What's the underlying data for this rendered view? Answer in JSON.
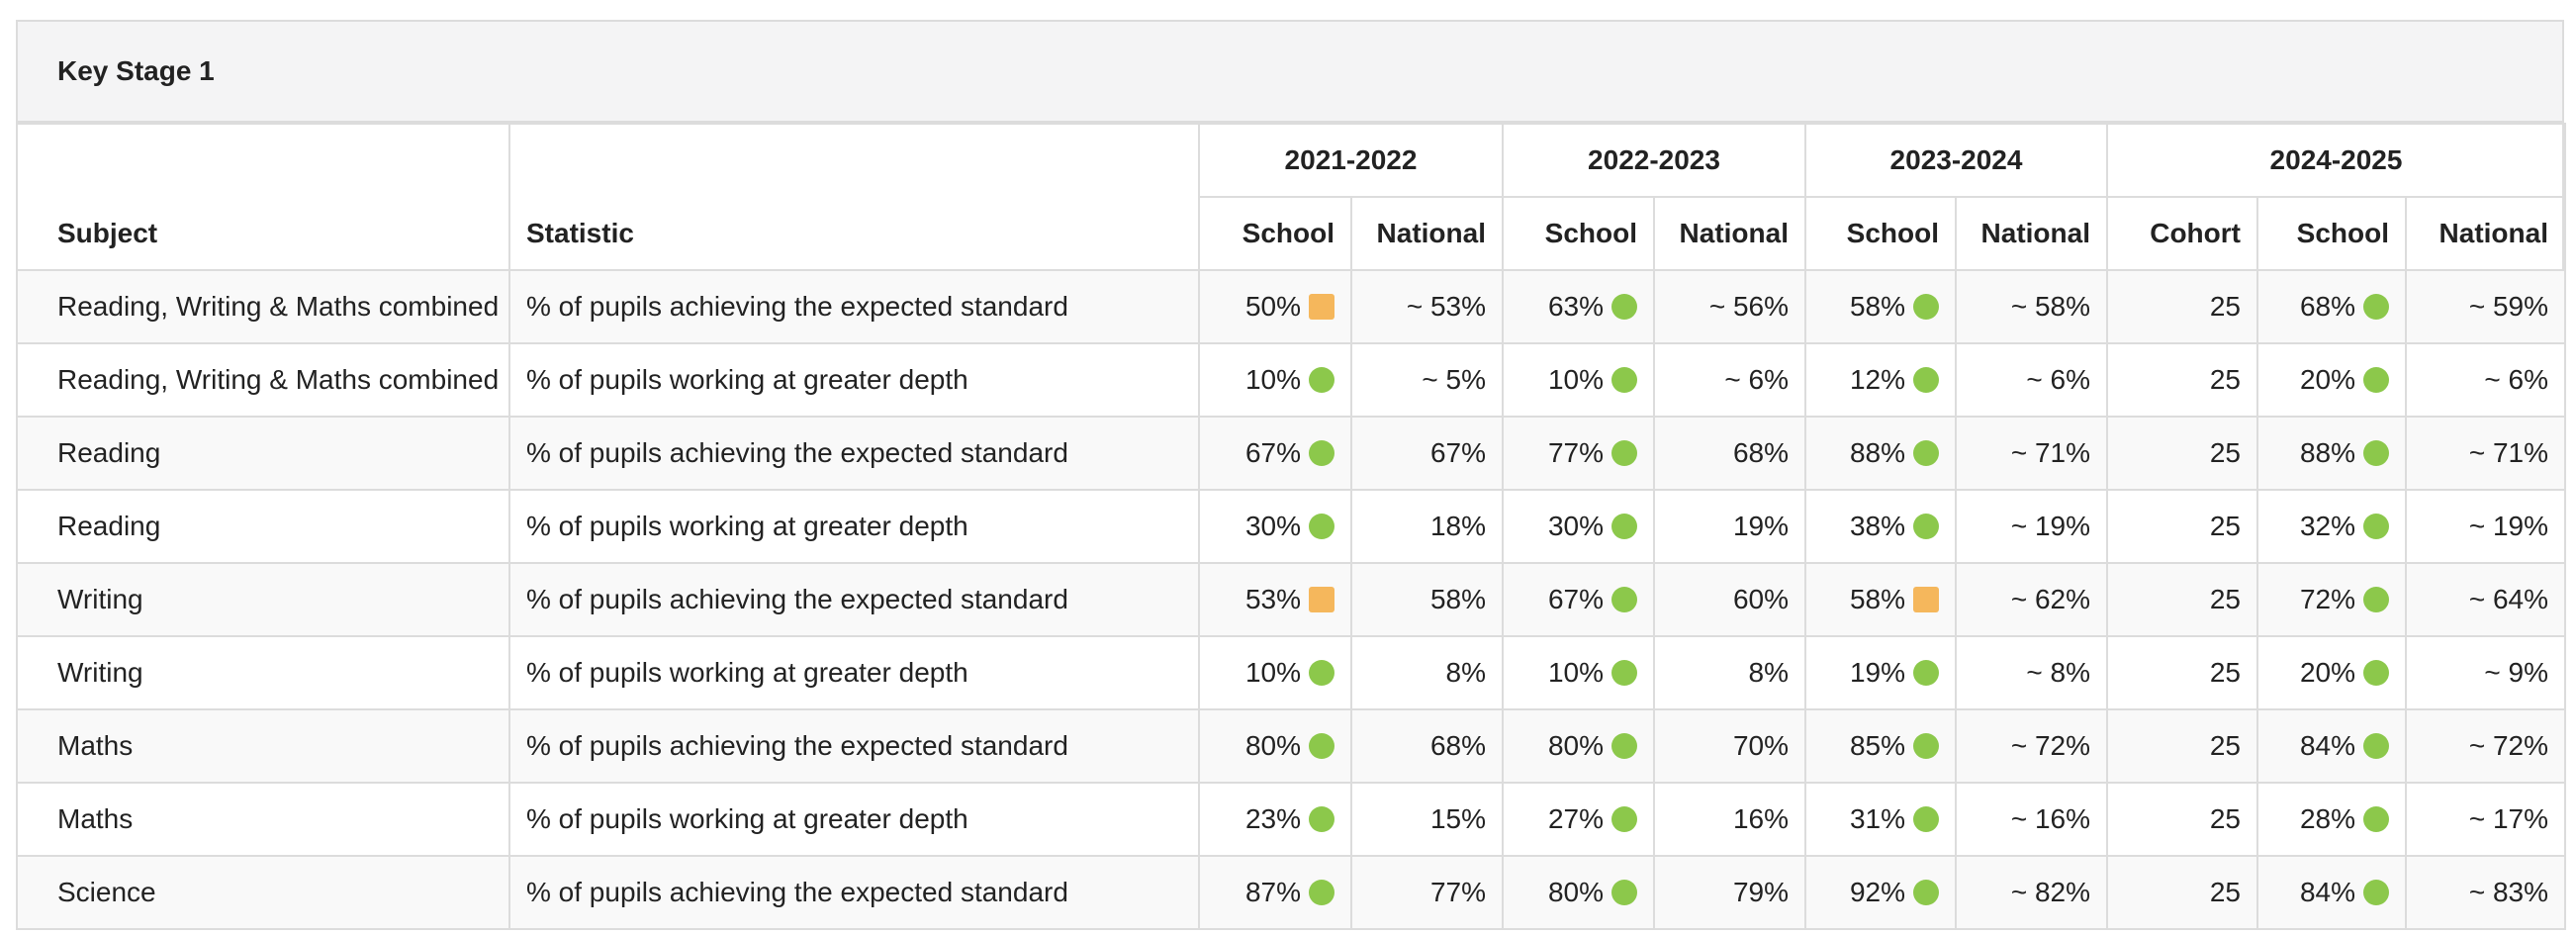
{
  "panel": {
    "title": "Key Stage 1"
  },
  "header": {
    "subject": "Subject",
    "statistic": "Statistic",
    "years": [
      "2021-2022",
      "2022-2023",
      "2023-2024",
      "2024-2025"
    ],
    "school": "School",
    "national": "National",
    "cohort": "Cohort"
  },
  "indicator_colors": {
    "green": "#8cc84b",
    "amber": "#f5b75c"
  },
  "rows": [
    {
      "subject": "Reading, Writing & Maths combined",
      "statistic": "% of pupils achieving the expected standard",
      "y1_school": "50%",
      "y1_ind": "amber",
      "y1_national": "~ 53%",
      "y2_school": "63%",
      "y2_ind": "green",
      "y2_national": "~ 56%",
      "y3_school": "58%",
      "y3_ind": "green",
      "y3_national": "~ 58%",
      "y4_cohort": "25",
      "y4_school": "68%",
      "y4_ind": "green",
      "y4_national": "~ 59%"
    },
    {
      "subject": "Reading, Writing & Maths combined",
      "statistic": "% of pupils working at greater depth",
      "y1_school": "10%",
      "y1_ind": "green",
      "y1_national": "~ 5%",
      "y2_school": "10%",
      "y2_ind": "green",
      "y2_national": "~ 6%",
      "y3_school": "12%",
      "y3_ind": "green",
      "y3_national": "~ 6%",
      "y4_cohort": "25",
      "y4_school": "20%",
      "y4_ind": "green",
      "y4_national": "~ 6%"
    },
    {
      "subject": "Reading",
      "statistic": "% of pupils achieving the expected standard",
      "y1_school": "67%",
      "y1_ind": "green",
      "y1_national": "67%",
      "y2_school": "77%",
      "y2_ind": "green",
      "y2_national": "68%",
      "y3_school": "88%",
      "y3_ind": "green",
      "y3_national": "~ 71%",
      "y4_cohort": "25",
      "y4_school": "88%",
      "y4_ind": "green",
      "y4_national": "~ 71%"
    },
    {
      "subject": "Reading",
      "statistic": "% of pupils working at greater depth",
      "y1_school": "30%",
      "y1_ind": "green",
      "y1_national": "18%",
      "y2_school": "30%",
      "y2_ind": "green",
      "y2_national": "19%",
      "y3_school": "38%",
      "y3_ind": "green",
      "y3_national": "~ 19%",
      "y4_cohort": "25",
      "y4_school": "32%",
      "y4_ind": "green",
      "y4_national": "~ 19%"
    },
    {
      "subject": "Writing",
      "statistic": "% of pupils achieving the expected standard",
      "y1_school": "53%",
      "y1_ind": "amber",
      "y1_national": "58%",
      "y2_school": "67%",
      "y2_ind": "green",
      "y2_national": "60%",
      "y3_school": "58%",
      "y3_ind": "amber",
      "y3_national": "~ 62%",
      "y4_cohort": "25",
      "y4_school": "72%",
      "y4_ind": "green",
      "y4_national": "~ 64%"
    },
    {
      "subject": "Writing",
      "statistic": "% of pupils working at greater depth",
      "y1_school": "10%",
      "y1_ind": "green",
      "y1_national": "8%",
      "y2_school": "10%",
      "y2_ind": "green",
      "y2_national": "8%",
      "y3_school": "19%",
      "y3_ind": "green",
      "y3_national": "~ 8%",
      "y4_cohort": "25",
      "y4_school": "20%",
      "y4_ind": "green",
      "y4_national": "~ 9%"
    },
    {
      "subject": "Maths",
      "statistic": "% of pupils achieving the expected standard",
      "y1_school": "80%",
      "y1_ind": "green",
      "y1_national": "68%",
      "y2_school": "80%",
      "y2_ind": "green",
      "y2_national": "70%",
      "y3_school": "85%",
      "y3_ind": "green",
      "y3_national": "~ 72%",
      "y4_cohort": "25",
      "y4_school": "84%",
      "y4_ind": "green",
      "y4_national": "~ 72%"
    },
    {
      "subject": "Maths",
      "statistic": "% of pupils working at greater depth",
      "y1_school": "23%",
      "y1_ind": "green",
      "y1_national": "15%",
      "y2_school": "27%",
      "y2_ind": "green",
      "y2_national": "16%",
      "y3_school": "31%",
      "y3_ind": "green",
      "y3_national": "~ 16%",
      "y4_cohort": "25",
      "y4_school": "28%",
      "y4_ind": "green",
      "y4_national": "~ 17%"
    },
    {
      "subject": "Science",
      "statistic": "% of pupils achieving the expected standard",
      "y1_school": "87%",
      "y1_ind": "green",
      "y1_national": "77%",
      "y2_school": "80%",
      "y2_ind": "green",
      "y2_national": "79%",
      "y3_school": "92%",
      "y3_ind": "green",
      "y3_national": "~ 82%",
      "y4_cohort": "25",
      "y4_school": "84%",
      "y4_ind": "green",
      "y4_national": "~ 83%"
    }
  ]
}
